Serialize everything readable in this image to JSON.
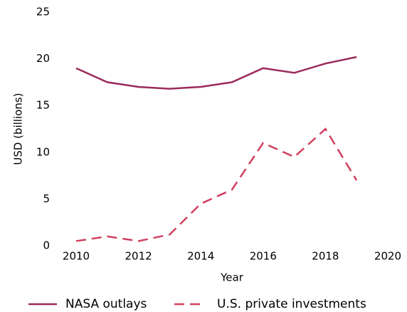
{
  "chart_data": {
    "type": "line",
    "x": [
      2010,
      2011,
      2012,
      2013,
      2014,
      2015,
      2016,
      2017,
      2018,
      2019
    ],
    "series": [
      {
        "name": "NASA outlays",
        "color": "#9b2b5c",
        "linestyle": "solid",
        "values": [
          19.0,
          17.5,
          17.0,
          16.8,
          17.0,
          17.5,
          19.0,
          18.5,
          19.5,
          20.2
        ]
      },
      {
        "name": "U.S. private investments",
        "color": "#d0405f",
        "linestyle": "dashed",
        "values": [
          0.5,
          1.0,
          0.5,
          1.2,
          4.5,
          6.0,
          11.0,
          9.5,
          12.5,
          7.0
        ]
      }
    ],
    "xlabel": "Year",
    "ylabel": "USD (billions)",
    "xlim": [
      2010,
      2020
    ],
    "xticks": [
      2010,
      2012,
      2014,
      2016,
      2018,
      2020
    ],
    "ylim": [
      0,
      25
    ],
    "yticks": [
      0,
      5,
      10,
      15,
      20,
      25
    ],
    "grid": false,
    "legend": "bottom"
  }
}
